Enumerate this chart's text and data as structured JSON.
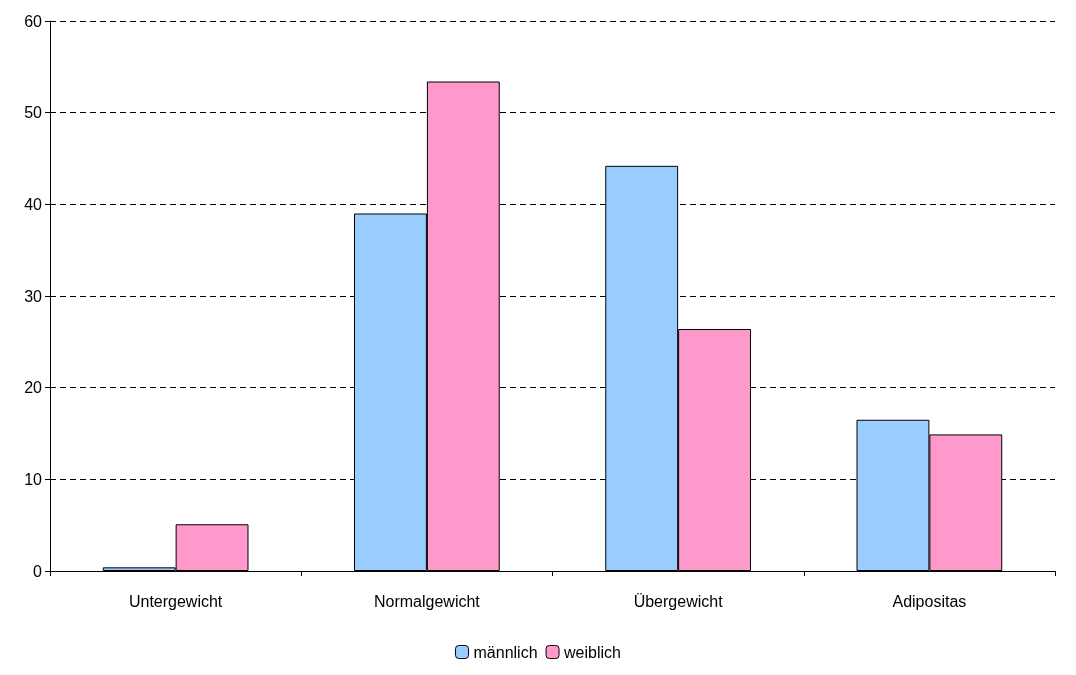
{
  "chart_data": {
    "type": "bar",
    "categories": [
      "Untergewicht",
      "Normalgewicht",
      "Übergewicht",
      "Adipositas"
    ],
    "series": [
      {
        "name": "männlich",
        "color": "#99ccff",
        "values": [
          0.4,
          39,
          44.2,
          16.5
        ]
      },
      {
        "name": "weiblich",
        "color": "#ff99cc",
        "values": [
          5.1,
          53.4,
          26.4,
          14.9
        ]
      }
    ],
    "ylim": [
      0,
      60
    ],
    "yticks": [
      0,
      10,
      20,
      30,
      40,
      50,
      60
    ],
    "grid": "y",
    "legend": "bottom"
  }
}
